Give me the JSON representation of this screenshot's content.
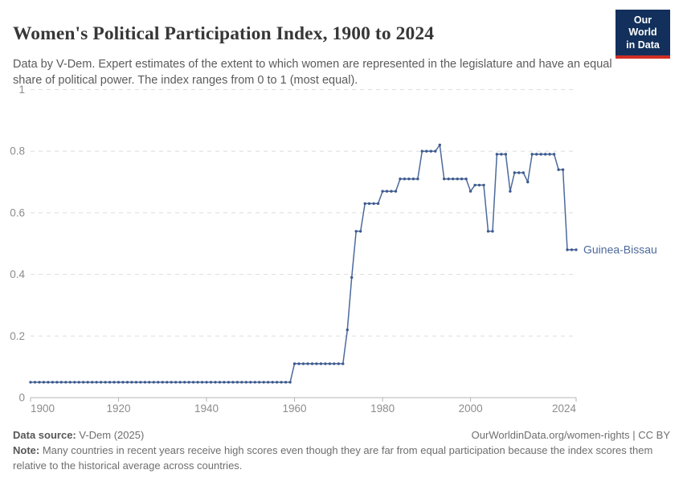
{
  "header": {
    "title": "Women's Political Participation Index, 1900 to 2024",
    "subtitle": "Data by V-Dem. Expert estimates of the extent to which women are represented in the legislature and have an equal share of political power. The index ranges from 0 to 1 (most equal).",
    "logo": {
      "line1": "Our World",
      "line2": "in Data",
      "bg_color": "#12305b",
      "stripe_color": "#cf2f26"
    }
  },
  "chart_data": {
    "type": "line",
    "title": "Women's Political Participation Index, 1900 to 2024",
    "xlabel": "",
    "ylabel": "",
    "xlim": [
      1900,
      2024
    ],
    "ylim": [
      0,
      1
    ],
    "x_ticks": [
      1900,
      1920,
      1940,
      1960,
      1980,
      2000,
      2024
    ],
    "y_ticks": [
      0,
      0.2,
      0.4,
      0.6,
      0.8,
      1
    ],
    "grid": "dashed-horizontal",
    "legend_position": "end-of-line-label",
    "marker": "dot-per-year",
    "series": [
      {
        "name": "Guinea-Bissau",
        "color": "#4C6A9C",
        "start_year": 1900,
        "end_year": 2024,
        "values": [
          0.05,
          0.05,
          0.05,
          0.05,
          0.05,
          0.05,
          0.05,
          0.05,
          0.05,
          0.05,
          0.05,
          0.05,
          0.05,
          0.05,
          0.05,
          0.05,
          0.05,
          0.05,
          0.05,
          0.05,
          0.05,
          0.05,
          0.05,
          0.05,
          0.05,
          0.05,
          0.05,
          0.05,
          0.05,
          0.05,
          0.05,
          0.05,
          0.05,
          0.05,
          0.05,
          0.05,
          0.05,
          0.05,
          0.05,
          0.05,
          0.05,
          0.05,
          0.05,
          0.05,
          0.05,
          0.05,
          0.05,
          0.05,
          0.05,
          0.05,
          0.05,
          0.05,
          0.05,
          0.05,
          0.05,
          0.05,
          0.05,
          0.05,
          0.05,
          0.05,
          0.11,
          0.11,
          0.11,
          0.11,
          0.11,
          0.11,
          0.11,
          0.11,
          0.11,
          0.11,
          0.11,
          0.11,
          0.22,
          0.39,
          0.54,
          0.54,
          0.63,
          0.63,
          0.63,
          0.63,
          0.67,
          0.67,
          0.67,
          0.67,
          0.71,
          0.71,
          0.71,
          0.71,
          0.71,
          0.8,
          0.8,
          0.8,
          0.8,
          0.82,
          0.71,
          0.71,
          0.71,
          0.71,
          0.71,
          0.71,
          0.67,
          0.69,
          0.69,
          0.69,
          0.54,
          0.54,
          0.79,
          0.79,
          0.79,
          0.67,
          0.73,
          0.73,
          0.73,
          0.7,
          0.79,
          0.79,
          0.79,
          0.79,
          0.79,
          0.79,
          0.74,
          0.74,
          0.48,
          0.48,
          0.48
        ]
      }
    ]
  },
  "footer": {
    "data_source_label": "Data source:",
    "data_source_value": " V-Dem (2025)",
    "url_credit": "OurWorldinData.org/women-rights | CC BY",
    "note_label": "Note:",
    "note_text": " Many countries in recent years receive high scores even though they are far from equal participation because the index scores them relative to the historical average across countries."
  }
}
